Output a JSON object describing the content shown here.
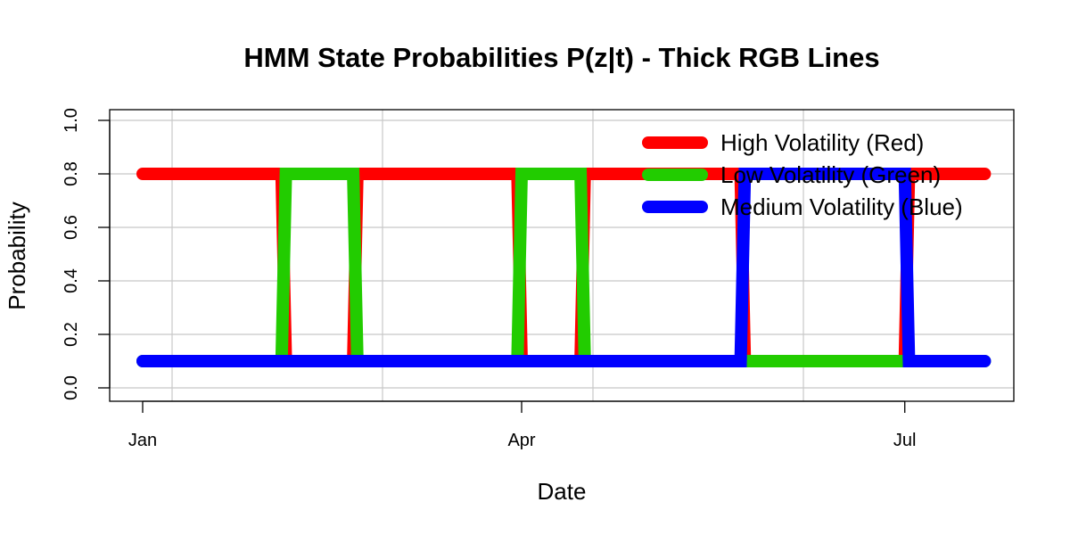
{
  "chart_data": {
    "type": "line",
    "title": "HMM State Probabilities P(z|t) - Thick RGB Lines",
    "xlabel": "Date",
    "ylabel": "Probability",
    "ylim": [
      0,
      1
    ],
    "y_ticks": [
      "0.0",
      "0.2",
      "0.4",
      "0.6",
      "0.8",
      "1.0"
    ],
    "x_ticks": [
      {
        "label": "Jan",
        "date": "2023-01-01"
      },
      {
        "label": "Apr",
        "date": "2023-04-01"
      },
      {
        "label": "Jul",
        "date": "2023-07-01"
      }
    ],
    "grid": true,
    "legend_position": "top-right",
    "x": [
      "2023-01-01",
      "2023-02-03",
      "2023-02-04",
      "2023-02-20",
      "2023-02-21",
      "2023-03-31",
      "2023-04-01",
      "2023-04-15",
      "2023-04-16",
      "2023-05-23",
      "2023-05-24",
      "2023-07-01",
      "2023-07-02",
      "2023-07-20"
    ],
    "series": [
      {
        "name": "High Volatility (Red)",
        "color": "#FF0000",
        "values": [
          0.8,
          0.8,
          0.1,
          0.1,
          0.8,
          0.8,
          0.1,
          0.1,
          0.8,
          0.8,
          0.1,
          0.1,
          0.8,
          0.8
        ]
      },
      {
        "name": "Low Volatility (Green)",
        "color": "#22CC00",
        "values": [
          0.1,
          0.1,
          0.8,
          0.8,
          0.1,
          0.1,
          0.8,
          0.8,
          0.1,
          0.1,
          0.1,
          0.1,
          0.1,
          0.1
        ]
      },
      {
        "name": "Medium Volatility (Blue)",
        "color": "#0000FF",
        "values": [
          0.1,
          0.1,
          0.1,
          0.1,
          0.1,
          0.1,
          0.1,
          0.1,
          0.1,
          0.1,
          0.8,
          0.8,
          0.1,
          0.1
        ]
      }
    ]
  }
}
